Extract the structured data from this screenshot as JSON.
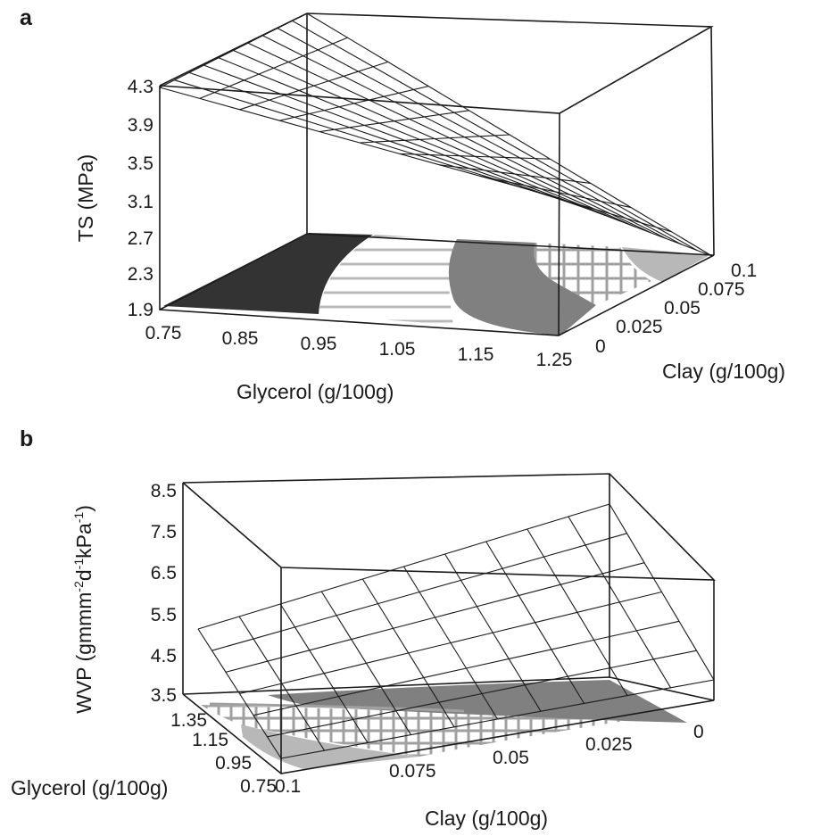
{
  "chart_data": [
    {
      "panel": "a",
      "type": "surface3d",
      "zlabel": "TS (MPa)",
      "xlabel": "Glycerol (g/100g)",
      "ylabel": "Clay (g/100g)",
      "z_ticks": [
        "4.3",
        "3.9",
        "3.5",
        "3.1",
        "2.7",
        "2.3",
        "1.9"
      ],
      "x_ticks": [
        "0.75",
        "0.85",
        "0.95",
        "1.05",
        "1.15",
        "1.25"
      ],
      "y_ticks": [
        "0",
        "0.025",
        "0.05",
        "0.075",
        "0.1"
      ],
      "zlim": [
        1.9,
        4.3
      ],
      "xlim": [
        0.75,
        1.25
      ],
      "ylim": [
        0,
        0.1
      ],
      "surface_corners": [
        {
          "glycerol": 0.75,
          "clay": 0,
          "ts": 4.3
        },
        {
          "glycerol": 0.75,
          "clay": 0.1,
          "ts": 4.9
        },
        {
          "glycerol": 1.25,
          "clay": 0,
          "ts": 3.0
        },
        {
          "glycerol": 1.25,
          "clay": 0.1,
          "ts": 2.7
        }
      ],
      "projection": "contour on floor",
      "colors": {
        "band1": "#333333",
        "band2": "#ffffff",
        "band3": "#808080",
        "band4": "#b8b8b8",
        "hatch": "#a0a0a0"
      }
    },
    {
      "panel": "b",
      "type": "surface3d",
      "zlabel": "WVP (gmmm-2d-1kPa-1)",
      "xlabel": "Clay (g/100g)",
      "ylabel": "Glycerol (g/100g)",
      "z_ticks": [
        "8.5",
        "7.5",
        "6.5",
        "5.5",
        "4.5",
        "3.5"
      ],
      "x_ticks": [
        "0.1",
        "0.075",
        "0.05",
        "0.025",
        "0"
      ],
      "y_ticks": [
        "1.35",
        "1.15",
        "0.95",
        "0.75"
      ],
      "zlim": [
        3.5,
        8.5
      ],
      "xlim": [
        0.1,
        0
      ],
      "ylim": [
        0.75,
        1.35
      ],
      "surface_corners": [
        {
          "clay": 0.1,
          "glycerol": 0.75,
          "wvp": 3.6
        },
        {
          "clay": 0,
          "glycerol": 0.75,
          "wvp": 4.2
        },
        {
          "clay": 0.1,
          "glycerol": 1.35,
          "wvp": 5.8
        },
        {
          "clay": 0,
          "glycerol": 1.35,
          "wvp": 7.1
        }
      ],
      "projection": "contour on floor",
      "colors": {
        "band1": "#b8b8b8",
        "band2": "#ffffff",
        "band3": "#808080",
        "hatch": "#a0a0a0"
      }
    }
  ]
}
